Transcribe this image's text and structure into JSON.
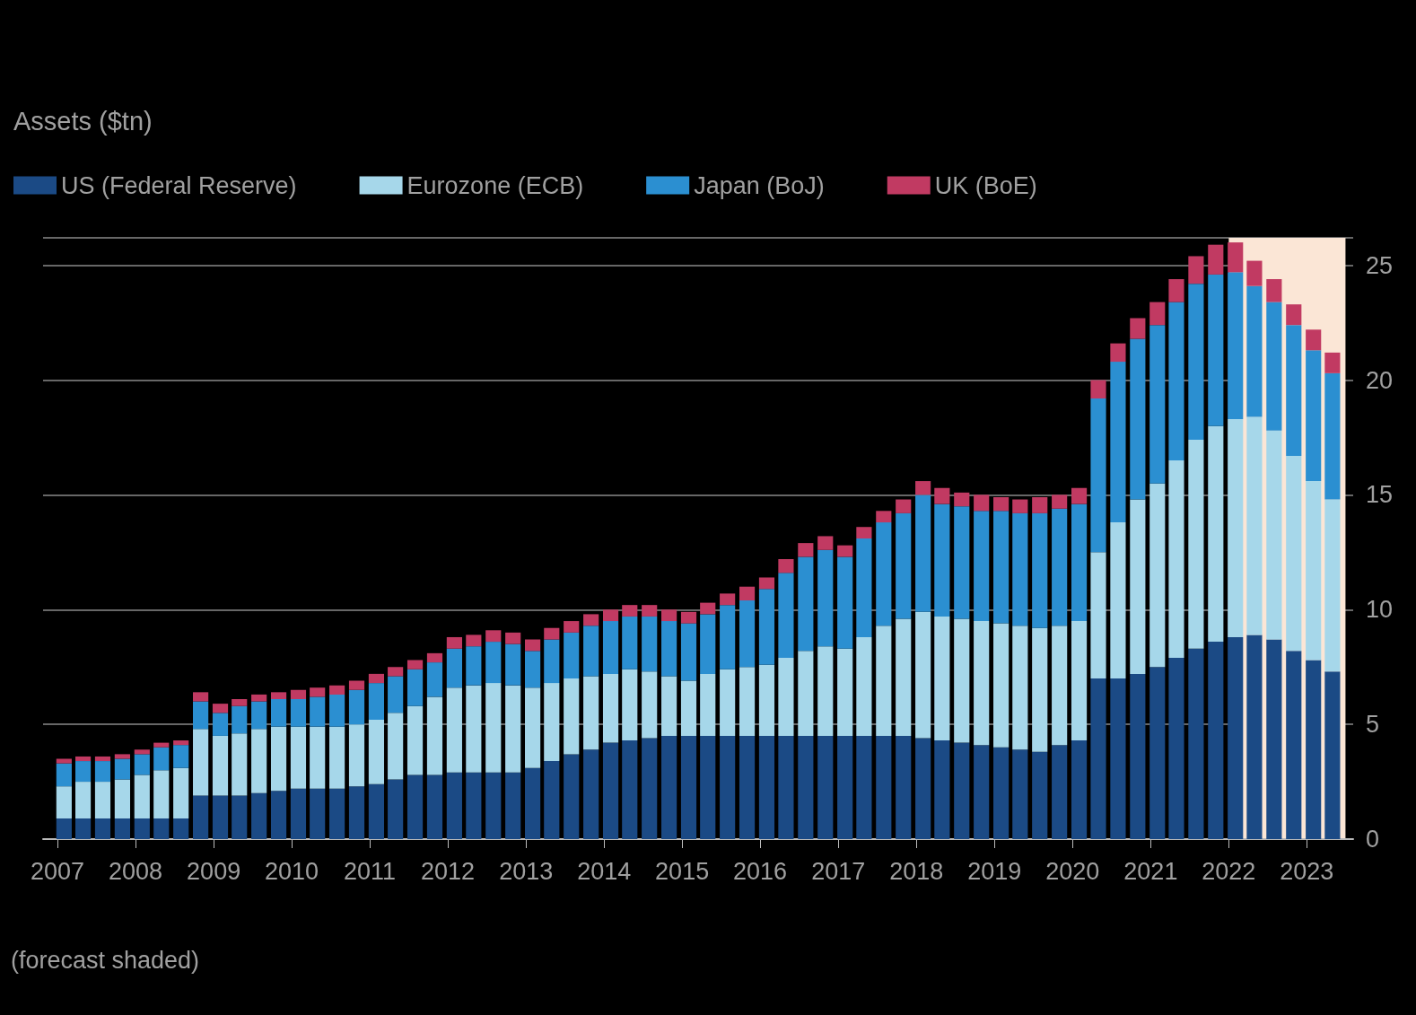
{
  "chart_data": {
    "type": "bar",
    "stacked": true,
    "ylabel": "Assets ($tn)",
    "annotations": [
      "(forecast shaded)"
    ],
    "x": [
      "2007-02",
      "2007-05",
      "2007-08",
      "2007-11",
      "2008-02",
      "2008-05",
      "2008-08",
      "2008-11",
      "2009-02",
      "2009-05",
      "2009-08",
      "2009-11",
      "2010-02",
      "2010-05",
      "2010-08",
      "2010-11",
      "2011-02",
      "2011-05",
      "2011-08",
      "2011-11",
      "2012-02",
      "2012-05",
      "2012-08",
      "2012-11",
      "2013-02",
      "2013-05",
      "2013-08",
      "2013-11",
      "2014-02",
      "2014-05",
      "2014-08",
      "2014-11",
      "2015-02",
      "2015-05",
      "2015-08",
      "2015-11",
      "2016-02",
      "2016-05",
      "2016-08",
      "2016-11",
      "2017-02",
      "2017-05",
      "2017-08",
      "2017-11",
      "2018-02",
      "2018-05",
      "2018-08",
      "2018-11",
      "2019-02",
      "2019-05",
      "2019-08",
      "2019-11",
      "2020-02",
      "2020-05",
      "2020-08",
      "2020-11",
      "2021-02",
      "2021-05",
      "2021-08",
      "2021-11",
      "2022-02",
      "2022-05",
      "2022-08",
      "2022-11",
      "2023-02",
      "2023-05"
    ],
    "series": [
      {
        "name": "US (Federal Reserve)",
        "color": "#1b4a85",
        "values": [
          0.9,
          0.9,
          0.9,
          0.9,
          0.9,
          0.9,
          0.9,
          1.9,
          1.9,
          1.9,
          2.0,
          2.1,
          2.2,
          2.2,
          2.2,
          2.3,
          2.4,
          2.6,
          2.8,
          2.8,
          2.9,
          2.9,
          2.9,
          2.9,
          3.1,
          3.4,
          3.7,
          3.9,
          4.2,
          4.3,
          4.4,
          4.5,
          4.5,
          4.5,
          4.5,
          4.5,
          4.5,
          4.5,
          4.5,
          4.5,
          4.5,
          4.5,
          4.5,
          4.5,
          4.4,
          4.3,
          4.2,
          4.1,
          4.0,
          3.9,
          3.8,
          4.1,
          4.3,
          7.0,
          7.0,
          7.2,
          7.5,
          7.9,
          8.3,
          8.6,
          8.8,
          8.9,
          8.7,
          8.2,
          7.8,
          7.3
        ]
      },
      {
        "name": "Eurozone (ECB)",
        "color": "#a6d7ea",
        "values": [
          1.4,
          1.6,
          1.6,
          1.7,
          1.9,
          2.1,
          2.2,
          2.9,
          2.6,
          2.7,
          2.8,
          2.8,
          2.7,
          2.7,
          2.7,
          2.7,
          2.8,
          2.9,
          3.0,
          3.4,
          3.7,
          3.8,
          3.9,
          3.8,
          3.5,
          3.4,
          3.3,
          3.2,
          3.0,
          3.1,
          2.9,
          2.6,
          2.4,
          2.7,
          2.9,
          3.0,
          3.1,
          3.4,
          3.7,
          3.9,
          3.8,
          4.3,
          4.8,
          5.1,
          5.5,
          5.4,
          5.4,
          5.4,
          5.4,
          5.4,
          5.4,
          5.2,
          5.2,
          5.5,
          6.8,
          7.6,
          8.0,
          8.6,
          9.1,
          9.4,
          9.5,
          9.5,
          9.1,
          8.5,
          7.8,
          7.5
        ]
      },
      {
        "name": "Japan (BoJ)",
        "color": "#2b8fd1",
        "values": [
          1.0,
          0.9,
          0.9,
          0.9,
          0.9,
          1.0,
          1.0,
          1.2,
          1.0,
          1.2,
          1.2,
          1.2,
          1.2,
          1.3,
          1.4,
          1.5,
          1.6,
          1.6,
          1.6,
          1.5,
          1.7,
          1.7,
          1.8,
          1.8,
          1.6,
          1.9,
          2.0,
          2.2,
          2.3,
          2.3,
          2.4,
          2.4,
          2.5,
          2.6,
          2.8,
          2.9,
          3.3,
          3.7,
          4.1,
          4.2,
          4.0,
          4.3,
          4.5,
          4.6,
          5.1,
          4.9,
          4.9,
          4.8,
          4.9,
          4.9,
          5.0,
          5.1,
          5.1,
          6.7,
          7.0,
          7.0,
          6.9,
          6.9,
          6.8,
          6.6,
          6.4,
          5.7,
          5.6,
          5.7,
          5.7,
          5.5
        ]
      },
      {
        "name": "UK (BoE)",
        "color": "#c13a62",
        "values": [
          0.2,
          0.2,
          0.2,
          0.2,
          0.2,
          0.2,
          0.2,
          0.4,
          0.4,
          0.3,
          0.3,
          0.3,
          0.4,
          0.4,
          0.4,
          0.4,
          0.4,
          0.4,
          0.4,
          0.4,
          0.5,
          0.5,
          0.5,
          0.5,
          0.5,
          0.5,
          0.5,
          0.5,
          0.5,
          0.5,
          0.5,
          0.5,
          0.5,
          0.5,
          0.5,
          0.6,
          0.5,
          0.6,
          0.6,
          0.6,
          0.5,
          0.5,
          0.5,
          0.6,
          0.6,
          0.7,
          0.6,
          0.7,
          0.6,
          0.6,
          0.7,
          0.6,
          0.7,
          0.8,
          0.8,
          0.9,
          1.0,
          1.0,
          1.2,
          1.3,
          1.3,
          1.1,
          1.0,
          0.9,
          0.9,
          0.9
        ]
      }
    ],
    "xlim": [
      "2006-12",
      "2023-07"
    ],
    "xticks": [
      "2007",
      "2008",
      "2009",
      "2010",
      "2011",
      "2012",
      "2013",
      "2014",
      "2015",
      "2016",
      "2017",
      "2018",
      "2019",
      "2020",
      "2021",
      "2022",
      "2023"
    ],
    "ylim": [
      0,
      26.2
    ],
    "yticks": [
      0,
      5,
      10,
      15,
      20,
      25
    ],
    "bands": [
      {
        "axis": "x",
        "from": "2022-01",
        "to": "2023-07",
        "color": "#fbe6d6"
      }
    ],
    "grid": "y",
    "legend": "top left"
  }
}
